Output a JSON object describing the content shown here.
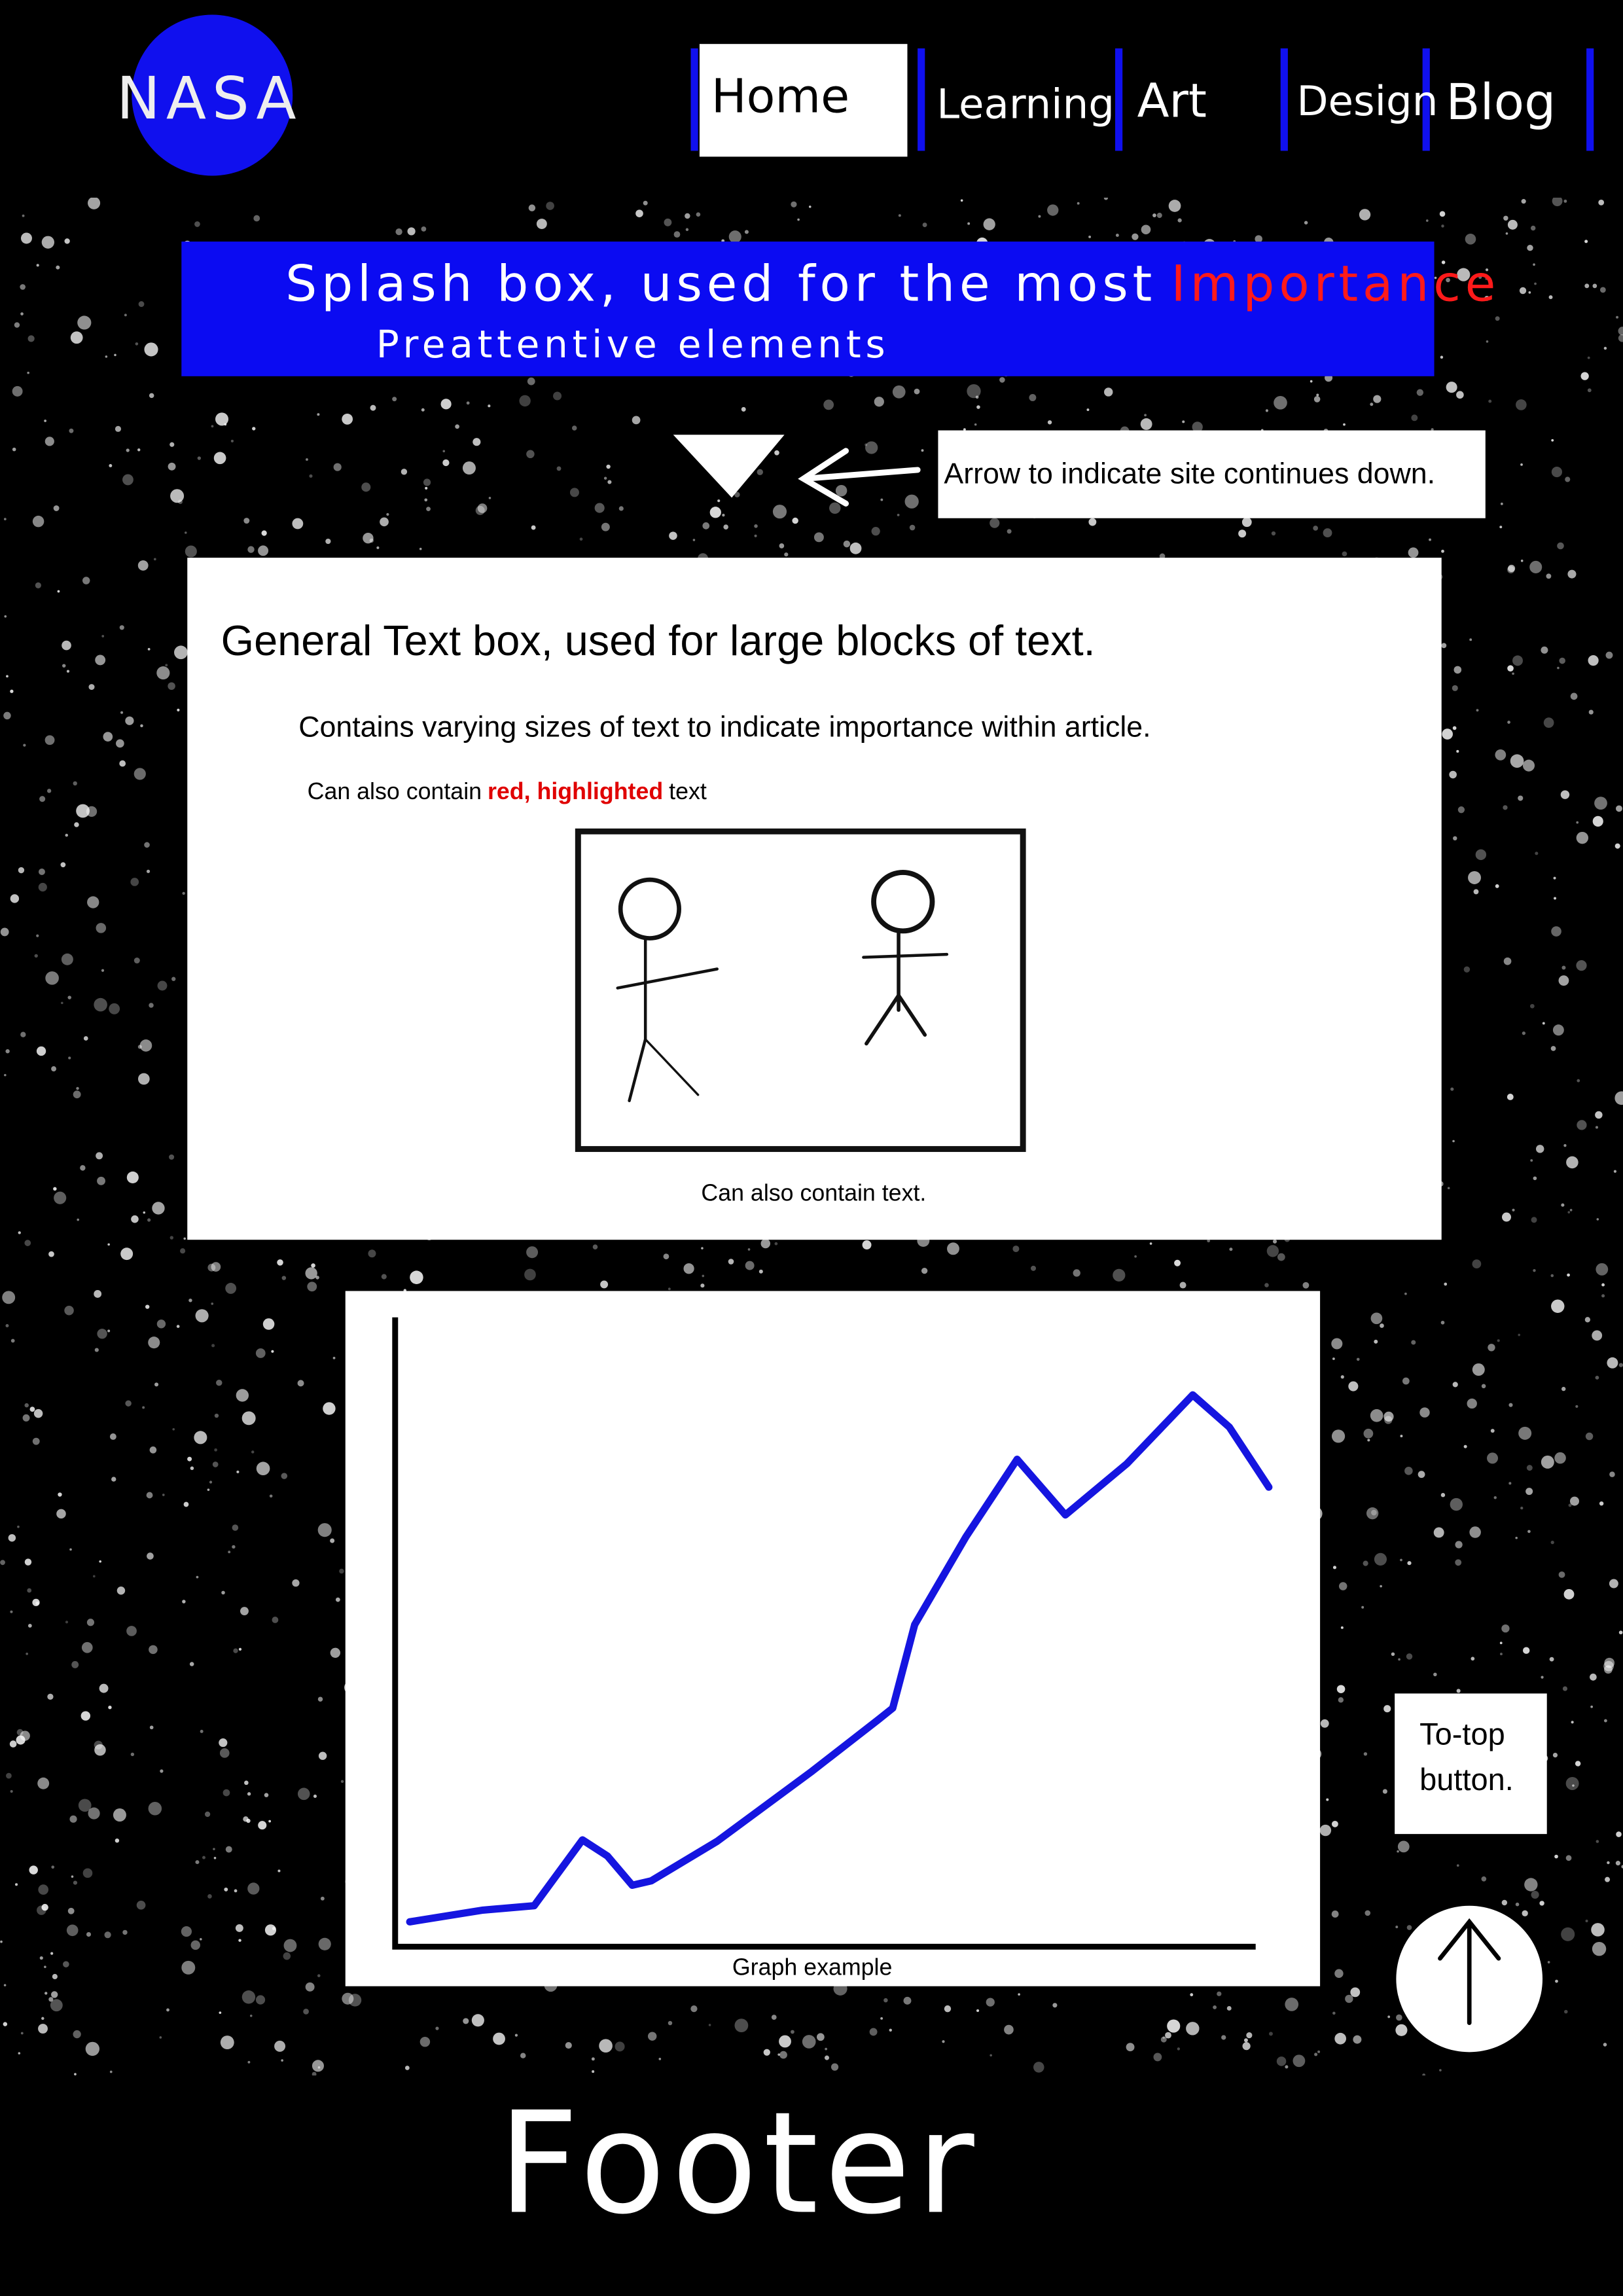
{
  "header": {
    "logo": "NASA",
    "nav": [
      "Home",
      "Learning",
      "Art",
      "Design",
      "Blog"
    ]
  },
  "splash": {
    "text": "Splash box, used for the most",
    "highlight": "Importance",
    "line2": "Preattentive elements"
  },
  "annotation": "Arrow to indicate site continues down.",
  "article": {
    "heading": "General Text box, used for large blocks of text.",
    "subheading": "Contains varying sizes of text to indicate importance within article.",
    "body": "Can also contain",
    "highlight": "red, highlighted",
    "body_end": "text",
    "caption": "Can also contain text."
  },
  "graph": {
    "caption": "Graph example"
  },
  "to_top": {
    "label": "To-top button."
  },
  "footer": {
    "label": "Footer"
  }
}
